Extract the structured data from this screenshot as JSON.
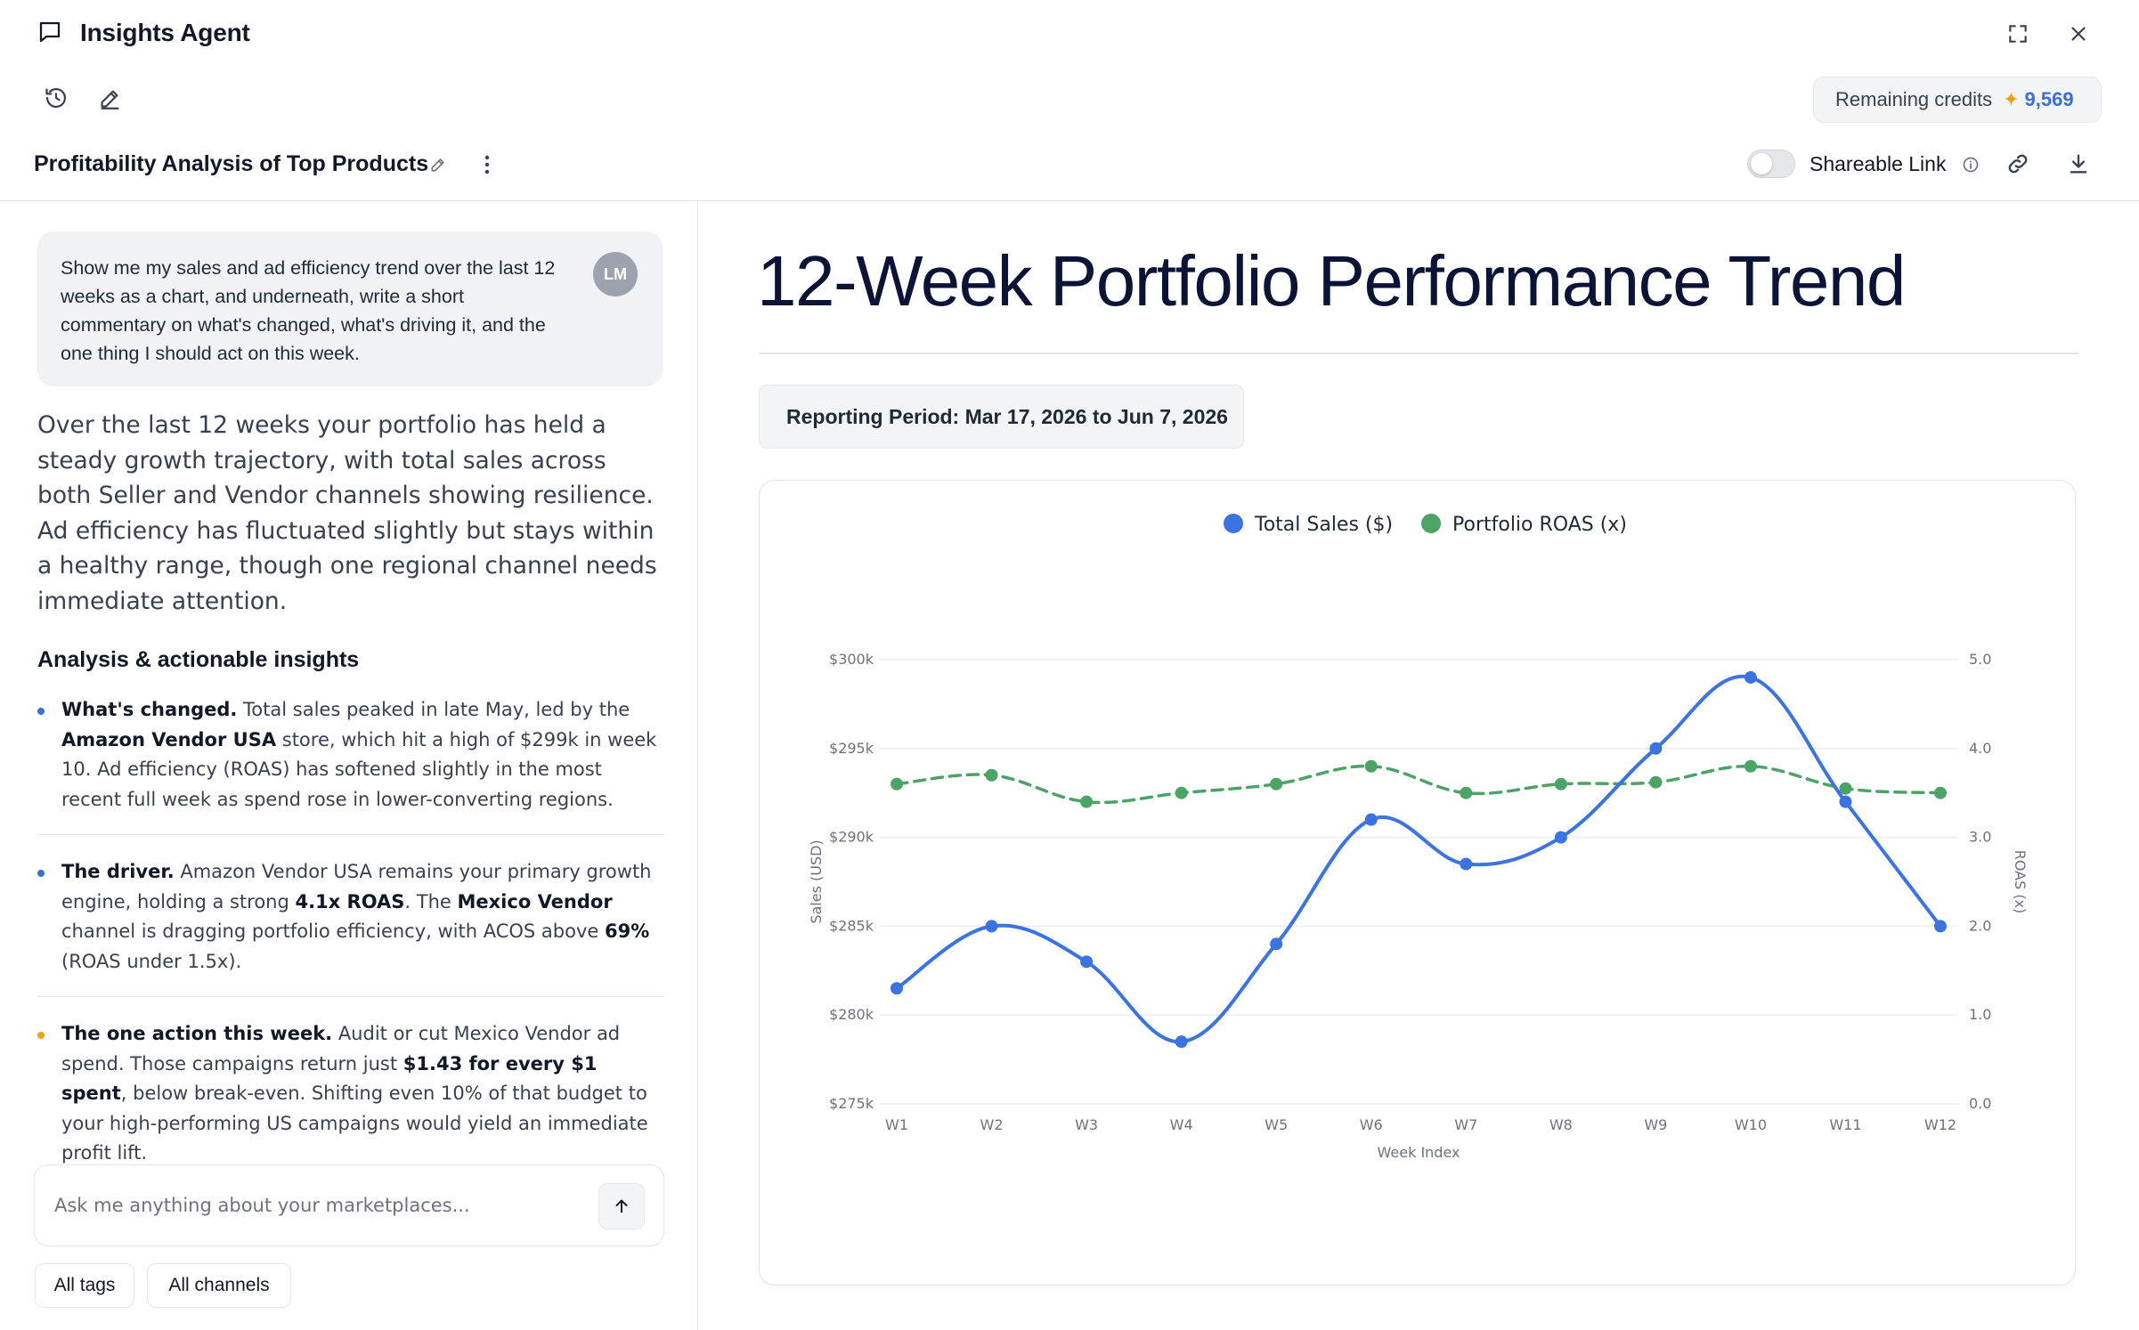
{
  "header": {
    "title": "Insights Agent",
    "credits_label": "Remaining credits",
    "credits_value": "9,569"
  },
  "conversation": {
    "title": "Profitability Analysis of Top Products",
    "share_label": "Shareable Link",
    "share_enabled": false
  },
  "user_message": {
    "avatar_initials": "LM",
    "text": "Show me my sales and ad efficiency trend over the last 12 weeks as a chart, and underneath, write a short commentary on what's changed, what's driving it, and the one thing I should act on this week."
  },
  "assistant": {
    "intro": "Over the last 12 weeks your portfolio has held a steady growth trajectory, with total sales across both Seller and Vendor channels showing resilience. Ad efficiency has fluctuated slightly but stays within a healthy range, though one regional channel needs immediate attention.",
    "insights_heading": "Analysis & actionable insights",
    "insights": [
      {
        "dot_color": "#3b6fd8",
        "parts": [
          {
            "text": "What's changed.",
            "bold": true
          },
          {
            "text": " Total sales peaked in late May, led by the ",
            "bold": false
          },
          {
            "text": "Amazon Vendor USA",
            "bold": true
          },
          {
            "text": " store, which hit a high of $299k in week 10. Ad efficiency (ROAS) has softened slightly in the most recent full week as spend rose in lower-converting regions.",
            "bold": false
          }
        ]
      },
      {
        "dot_color": "#3b6fd8",
        "parts": [
          {
            "text": "The driver.",
            "bold": true
          },
          {
            "text": " Amazon Vendor USA remains your primary growth engine, holding a strong ",
            "bold": false
          },
          {
            "text": "4.1x ROAS",
            "bold": true
          },
          {
            "text": ". The ",
            "bold": false
          },
          {
            "text": "Mexico Vendor",
            "bold": true
          },
          {
            "text": " channel is dragging portfolio efficiency, with ACOS above ",
            "bold": false
          },
          {
            "text": "69%",
            "bold": true
          },
          {
            "text": " (ROAS under 1.5x).",
            "bold": false
          }
        ]
      },
      {
        "dot_color": "#f59e0b",
        "parts": [
          {
            "text": "The one action this week.",
            "bold": true
          },
          {
            "text": " Audit or cut Mexico Vendor ad spend. Those campaigns return just ",
            "bold": false
          },
          {
            "text": "$1.43 for every $1 spent",
            "bold": true
          },
          {
            "text": ", below break-even. Shifting even 10% of that budget to your high-performing US campaigns would yield an immediate profit lift.",
            "bold": false
          }
        ]
      }
    ]
  },
  "composer": {
    "placeholder": "Ask me anything about your marketplaces...",
    "chips": [
      "All tags",
      "All channels"
    ]
  },
  "report": {
    "title": "12-Week Portfolio Performance Trend",
    "period": "Reporting Period: Mar 17, 2026 to Jun 7, 2026"
  },
  "chart_data": {
    "type": "line",
    "categories": [
      "W1",
      "W2",
      "W3",
      "W4",
      "W5",
      "W6",
      "W7",
      "W8",
      "W9",
      "W10",
      "W11",
      "W12"
    ],
    "xlabel": "Week Index",
    "ylabel_left": "Sales (USD)",
    "ylabel_right": "ROAS (x)",
    "left_axis": {
      "min": 275000,
      "max": 300000,
      "ticks": [
        275000,
        280000,
        285000,
        290000,
        295000,
        300000
      ],
      "tick_labels": [
        "$275k",
        "$280k",
        "$285k",
        "$290k",
        "$295k",
        "$300k"
      ]
    },
    "right_axis": {
      "min": 0,
      "max": 5,
      "ticks": [
        0,
        1,
        2,
        3,
        4,
        5
      ],
      "tick_labels": [
        "0.0",
        "1.0",
        "2.0",
        "3.0",
        "4.0",
        "5.0"
      ]
    },
    "legend_position": "top",
    "grid": true,
    "series": [
      {
        "name": "Total Sales ($)",
        "axis": "left",
        "color": "#3b73e0",
        "dash": false,
        "values": [
          281500,
          285000,
          283000,
          278500,
          284000,
          291000,
          288500,
          290000,
          295000,
          299000,
          292000,
          285000
        ]
      },
      {
        "name": "Portfolio ROAS (x)",
        "axis": "right",
        "color": "#4ca366",
        "dash": true,
        "values": [
          3.6,
          3.7,
          3.4,
          3.5,
          3.6,
          3.8,
          3.5,
          3.6,
          3.62,
          3.8,
          3.55,
          3.5
        ]
      }
    ]
  }
}
